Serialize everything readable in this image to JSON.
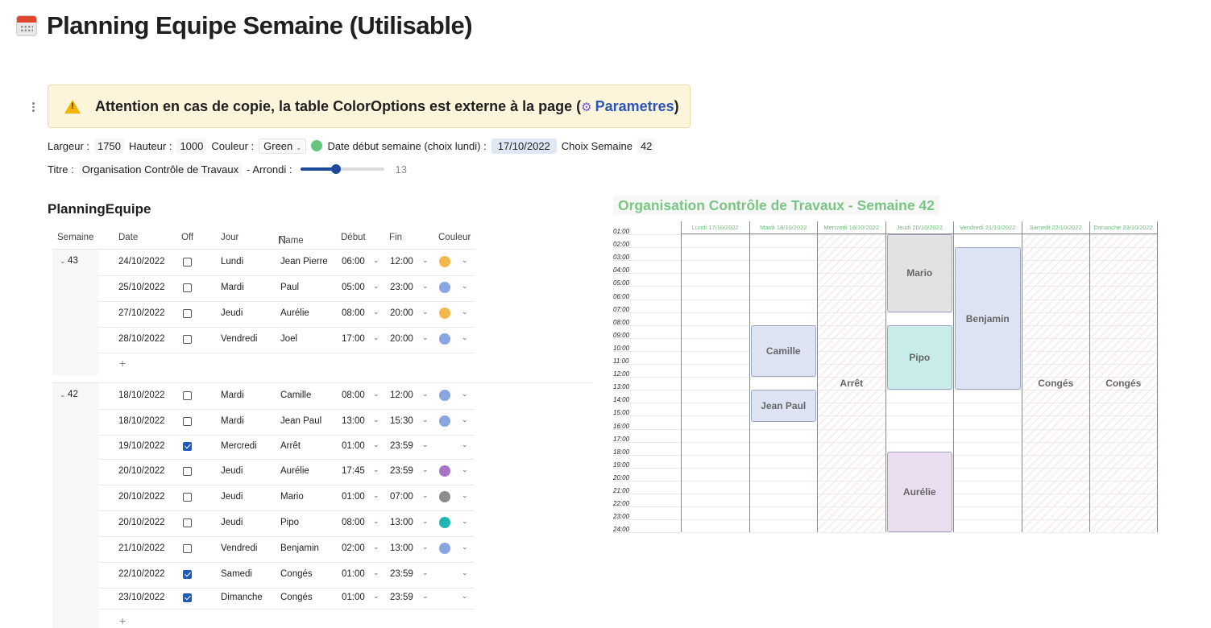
{
  "page": {
    "title": "Planning Equipe Semaine (Utilisable)"
  },
  "warning": {
    "text": "Attention en cas de copie, la table ColorOptions est externe à la page (",
    "link": "Parametres",
    "end": ")"
  },
  "controls": {
    "largeur_label": "Largeur :",
    "largeur": "1750",
    "hauteur_label": "Hauteur :",
    "hauteur": "1000",
    "couleur_label": "Couleur :",
    "couleur": "Green",
    "date_label": "Date début semaine (choix lundi) :",
    "date": "17/10/2022",
    "semaine_label": "Choix Semaine",
    "semaine": "42",
    "titre_label": "Titre :",
    "titre": "Organisation Contrôle de Travaux",
    "arrondi_label": "- Arrondi :",
    "arrondi": "13",
    "arrondi_fraction": 0.43
  },
  "table": {
    "title": "PlanningEquipe",
    "headers": [
      "Semaine",
      "Date",
      "Off",
      "Jour",
      "Name",
      "Début",
      "Fin",
      "Couleur"
    ],
    "groups": [
      {
        "week": "43",
        "rows": [
          {
            "date": "24/10/2022",
            "off": false,
            "jour": "Lundi",
            "name": "Jean Pierre",
            "debut": "06:00",
            "fin": "12:00",
            "color": "#f2b84b"
          },
          {
            "date": "25/10/2022",
            "off": false,
            "jour": "Mardi",
            "name": "Paul",
            "debut": "05:00",
            "fin": "23:00",
            "color": "#8aa4e0"
          },
          {
            "date": "27/10/2022",
            "off": false,
            "jour": "Jeudi",
            "name": "Aurélie",
            "debut": "08:00",
            "fin": "20:00",
            "color": "#f2b84b"
          },
          {
            "date": "28/10/2022",
            "off": false,
            "jour": "Vendredi",
            "name": "Joel",
            "debut": "17:00",
            "fin": "20:00",
            "color": "#8aa4e0"
          }
        ]
      },
      {
        "week": "42",
        "rows": [
          {
            "date": "18/10/2022",
            "off": false,
            "jour": "Mardi",
            "name": "Camille",
            "debut": "08:00",
            "fin": "12:00",
            "color": "#8aa4e0"
          },
          {
            "date": "18/10/2022",
            "off": false,
            "jour": "Mardi",
            "name": "Jean Paul",
            "debut": "13:00",
            "fin": "15:30",
            "color": "#8aa4e0"
          },
          {
            "date": "19/10/2022",
            "off": true,
            "jour": "Mercredi",
            "name": "Arrêt",
            "debut": "01:00",
            "fin": "23:59",
            "color": ""
          },
          {
            "date": "20/10/2022",
            "off": false,
            "jour": "Jeudi",
            "name": "Aurélie",
            "debut": "17:45",
            "fin": "23:59",
            "color": "#a874c8"
          },
          {
            "date": "20/10/2022",
            "off": false,
            "jour": "Jeudi",
            "name": "Mario",
            "debut": "01:00",
            "fin": "07:00",
            "color": "#8c8c8c"
          },
          {
            "date": "20/10/2022",
            "off": false,
            "jour": "Jeudi",
            "name": "Pipo",
            "debut": "08:00",
            "fin": "13:00",
            "color": "#1fb5b0"
          },
          {
            "date": "21/10/2022",
            "off": false,
            "jour": "Vendredi",
            "name": "Benjamin",
            "debut": "02:00",
            "fin": "13:00",
            "color": "#8aa4e0"
          },
          {
            "date": "22/10/2022",
            "off": true,
            "jour": "Samedi",
            "name": "Congés",
            "debut": "01:00",
            "fin": "23:59",
            "color": ""
          },
          {
            "date": "23/10/2022",
            "off": true,
            "jour": "Dimanche",
            "name": "Congés",
            "debut": "01:00",
            "fin": "23:59",
            "color": ""
          }
        ]
      }
    ],
    "add_label": "+"
  },
  "planning": {
    "title": "Organisation Contrôle de Travaux - Semaine 42",
    "hours": [
      "01:00",
      "02:00",
      "03:00",
      "04:00",
      "05:00",
      "06:00",
      "07:00",
      "08:00",
      "09:00",
      "10:00",
      "11:00",
      "12:00",
      "13:00",
      "14:00",
      "15:00",
      "16:00",
      "17:00",
      "18:00",
      "19:00",
      "20:00",
      "21:00",
      "22:00",
      "23:00",
      "24:00"
    ],
    "days": [
      {
        "label": "Lundi 17/10/2022",
        "off": false
      },
      {
        "label": "Mardi 18/10/2022",
        "off": false
      },
      {
        "label": "Mercredi 19/10/2022",
        "off": true,
        "off_label": "Arrêt"
      },
      {
        "label": "Jeudi 20/10/2022",
        "off": false
      },
      {
        "label": "Vendredi 21/10/2022",
        "off": false
      },
      {
        "label": "Samedi 22/10/2022",
        "off": true,
        "off_label": "Congés"
      },
      {
        "label": "Dimanche 23/10/2022",
        "off": true,
        "off_label": "Congés"
      }
    ],
    "events": [
      {
        "day": 1,
        "name": "Camille",
        "start": 8,
        "end": 12,
        "color": "#dde3f2"
      },
      {
        "day": 1,
        "name": "Jean Paul",
        "start": 13,
        "end": 15.5,
        "color": "#dde3f2"
      },
      {
        "day": 3,
        "name": "Mario",
        "start": 1,
        "end": 7,
        "color": "#e2e2e2"
      },
      {
        "day": 3,
        "name": "Pipo",
        "start": 8,
        "end": 13,
        "color": "#c8ece9"
      },
      {
        "day": 3,
        "name": "Aurélie",
        "start": 17.75,
        "end": 24,
        "color": "#e9ddef"
      },
      {
        "day": 4,
        "name": "Benjamin",
        "start": 2,
        "end": 13,
        "color": "#dde3f2"
      }
    ]
  }
}
